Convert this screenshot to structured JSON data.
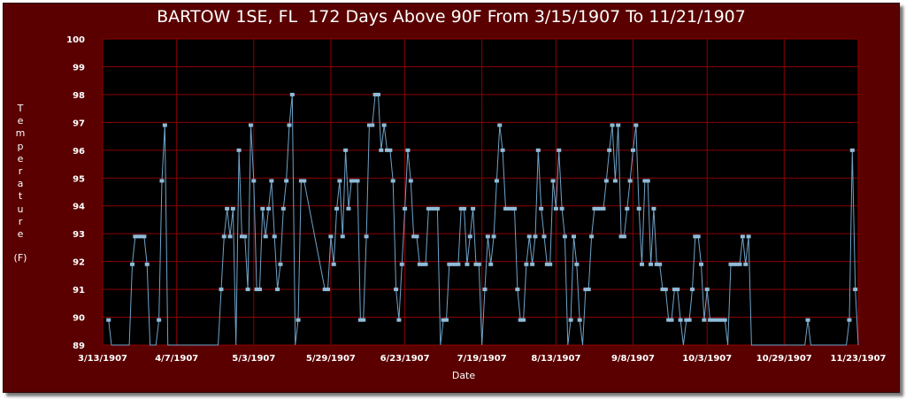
{
  "chart_data": {
    "type": "line",
    "title": "BARTOW 1SE, FL  172 Days Above 90F From 3/15/1907 To 11/21/1907",
    "xlabel": "Date",
    "ylabel_letters": [
      "T",
      "e",
      "m",
      "p",
      "e",
      "r",
      "a",
      "t",
      "u",
      "r",
      "e"
    ],
    "yunit": "(F)",
    "ylim": [
      89,
      100
    ],
    "yticks": [
      89,
      90,
      91,
      92,
      93,
      94,
      95,
      96,
      97,
      98,
      99,
      100
    ],
    "xlim": [
      "1907-03-13",
      "1907-11-23"
    ],
    "xticks": [
      "3/13/1907",
      "4/7/1907",
      "5/3/1907",
      "5/29/1907",
      "6/23/1907",
      "7/19/1907",
      "8/13/1907",
      "9/8/1907",
      "10/3/1907",
      "10/29/1907",
      "11/23/1907"
    ],
    "grid": true,
    "colors": {
      "background": "#5a0000",
      "plot": "#000000",
      "grid": "#8b0000",
      "line": "#6fa3c8",
      "marker": "#8fbcd8",
      "text": "#ffffff"
    },
    "series": [
      {
        "points": [
          [
            "1907-03-15",
            89.9
          ],
          [
            "1907-03-16",
            89.0
          ],
          [
            "1907-03-18",
            89.0
          ],
          [
            "1907-03-22",
            89.0
          ],
          [
            "1907-03-23",
            91.9
          ],
          [
            "1907-03-24",
            92.9
          ],
          [
            "1907-03-25",
            92.9
          ],
          [
            "1907-03-26",
            92.9
          ],
          [
            "1907-03-27",
            92.9
          ],
          [
            "1907-03-28",
            91.9
          ],
          [
            "1907-03-29",
            89.0
          ],
          [
            "1907-03-31",
            89.0
          ],
          [
            "1907-04-01",
            89.9
          ],
          [
            "1907-04-02",
            94.9
          ],
          [
            "1907-04-03",
            96.9
          ],
          [
            "1907-04-04",
            89.0
          ],
          [
            "1907-04-21",
            89.0
          ],
          [
            "1907-04-22",
            91.0
          ],
          [
            "1907-04-23",
            92.9
          ],
          [
            "1907-04-24",
            93.9
          ],
          [
            "1907-04-25",
            92.9
          ],
          [
            "1907-04-26",
            93.9
          ],
          [
            "1907-04-27",
            89.0
          ],
          [
            "1907-04-28",
            96.0
          ],
          [
            "1907-04-29",
            92.9
          ],
          [
            "1907-04-30",
            92.9
          ],
          [
            "1907-05-01",
            91.0
          ],
          [
            "1907-05-02",
            96.9
          ],
          [
            "1907-05-03",
            94.9
          ],
          [
            "1907-05-04",
            91.0
          ],
          [
            "1907-05-05",
            91.0
          ],
          [
            "1907-05-06",
            93.9
          ],
          [
            "1907-05-07",
            92.9
          ],
          [
            "1907-05-08",
            93.9
          ],
          [
            "1907-05-09",
            94.9
          ],
          [
            "1907-05-10",
            92.9
          ],
          [
            "1907-05-11",
            91.0
          ],
          [
            "1907-05-12",
            91.9
          ],
          [
            "1907-05-13",
            93.9
          ],
          [
            "1907-05-14",
            94.9
          ],
          [
            "1907-05-15",
            96.9
          ],
          [
            "1907-05-16",
            98.0
          ],
          [
            "1907-05-17",
            89.0
          ],
          [
            "1907-05-18",
            89.9
          ],
          [
            "1907-05-19",
            94.9
          ],
          [
            "1907-05-20",
            94.9
          ],
          [
            "1907-05-27",
            91.0
          ],
          [
            "1907-05-28",
            91.0
          ],
          [
            "1907-05-29",
            92.9
          ],
          [
            "1907-05-30",
            91.9
          ],
          [
            "1907-05-31",
            93.9
          ],
          [
            "1907-06-01",
            94.9
          ],
          [
            "1907-06-02",
            92.9
          ],
          [
            "1907-06-03",
            96.0
          ],
          [
            "1907-06-04",
            93.9
          ],
          [
            "1907-06-05",
            94.9
          ],
          [
            "1907-06-06",
            94.9
          ],
          [
            "1907-06-07",
            94.9
          ],
          [
            "1907-06-08",
            89.9
          ],
          [
            "1907-06-09",
            89.9
          ],
          [
            "1907-06-10",
            92.9
          ],
          [
            "1907-06-11",
            96.9
          ],
          [
            "1907-06-12",
            96.9
          ],
          [
            "1907-06-13",
            98.0
          ],
          [
            "1907-06-14",
            98.0
          ],
          [
            "1907-06-15",
            96.0
          ],
          [
            "1907-06-16",
            96.9
          ],
          [
            "1907-06-17",
            96.0
          ],
          [
            "1907-06-18",
            96.0
          ],
          [
            "1907-06-19",
            94.9
          ],
          [
            "1907-06-20",
            91.0
          ],
          [
            "1907-06-21",
            89.9
          ],
          [
            "1907-06-22",
            91.9
          ],
          [
            "1907-06-23",
            93.9
          ],
          [
            "1907-06-24",
            96.0
          ],
          [
            "1907-06-25",
            94.9
          ],
          [
            "1907-06-26",
            92.9
          ],
          [
            "1907-06-27",
            92.9
          ],
          [
            "1907-06-28",
            91.9
          ],
          [
            "1907-06-29",
            91.9
          ],
          [
            "1907-06-30",
            91.9
          ],
          [
            "1907-07-01",
            93.9
          ],
          [
            "1907-07-02",
            93.9
          ],
          [
            "1907-07-03",
            93.9
          ],
          [
            "1907-07-04",
            93.9
          ],
          [
            "1907-07-05",
            89.0
          ],
          [
            "1907-07-06",
            89.9
          ],
          [
            "1907-07-07",
            89.9
          ],
          [
            "1907-07-08",
            91.9
          ],
          [
            "1907-07-09",
            91.9
          ],
          [
            "1907-07-10",
            91.9
          ],
          [
            "1907-07-11",
            91.9
          ],
          [
            "1907-07-12",
            93.9
          ],
          [
            "1907-07-13",
            93.9
          ],
          [
            "1907-07-14",
            91.9
          ],
          [
            "1907-07-15",
            92.9
          ],
          [
            "1907-07-16",
            93.9
          ],
          [
            "1907-07-17",
            91.9
          ],
          [
            "1907-07-18",
            91.9
          ],
          [
            "1907-07-19",
            89.0
          ],
          [
            "1907-07-20",
            91.0
          ],
          [
            "1907-07-21",
            92.9
          ],
          [
            "1907-07-22",
            91.9
          ],
          [
            "1907-07-23",
            92.9
          ],
          [
            "1907-07-24",
            94.9
          ],
          [
            "1907-07-25",
            96.9
          ],
          [
            "1907-07-26",
            96.0
          ],
          [
            "1907-07-27",
            93.9
          ],
          [
            "1907-07-28",
            93.9
          ],
          [
            "1907-07-29",
            93.9
          ],
          [
            "1907-07-30",
            93.9
          ],
          [
            "1907-07-31",
            91.0
          ],
          [
            "1907-08-01",
            89.9
          ],
          [
            "1907-08-02",
            89.9
          ],
          [
            "1907-08-03",
            91.9
          ],
          [
            "1907-08-04",
            92.9
          ],
          [
            "1907-08-05",
            91.9
          ],
          [
            "1907-08-06",
            92.9
          ],
          [
            "1907-08-07",
            96.0
          ],
          [
            "1907-08-08",
            93.9
          ],
          [
            "1907-08-09",
            92.9
          ],
          [
            "1907-08-10",
            91.9
          ],
          [
            "1907-08-11",
            91.9
          ],
          [
            "1907-08-12",
            94.9
          ],
          [
            "1907-08-13",
            93.9
          ],
          [
            "1907-08-14",
            96.0
          ],
          [
            "1907-08-15",
            93.9
          ],
          [
            "1907-08-16",
            92.9
          ],
          [
            "1907-08-17",
            89.0
          ],
          [
            "1907-08-18",
            89.9
          ],
          [
            "1907-08-19",
            92.9
          ],
          [
            "1907-08-20",
            91.9
          ],
          [
            "1907-08-21",
            89.9
          ],
          [
            "1907-08-22",
            89.0
          ],
          [
            "1907-08-23",
            91.0
          ],
          [
            "1907-08-24",
            91.0
          ],
          [
            "1907-08-25",
            92.9
          ],
          [
            "1907-08-26",
            93.9
          ],
          [
            "1907-08-27",
            93.9
          ],
          [
            "1907-08-28",
            93.9
          ],
          [
            "1907-08-29",
            93.9
          ],
          [
            "1907-08-30",
            94.9
          ],
          [
            "1907-08-31",
            96.0
          ],
          [
            "1907-09-01",
            96.9
          ],
          [
            "1907-09-02",
            94.9
          ],
          [
            "1907-09-03",
            96.9
          ],
          [
            "1907-09-04",
            92.9
          ],
          [
            "1907-09-05",
            92.9
          ],
          [
            "1907-09-06",
            93.9
          ],
          [
            "1907-09-07",
            94.9
          ],
          [
            "1907-09-08",
            96.0
          ],
          [
            "1907-09-09",
            96.9
          ],
          [
            "1907-09-10",
            93.9
          ],
          [
            "1907-09-11",
            91.9
          ],
          [
            "1907-09-12",
            94.9
          ],
          [
            "1907-09-13",
            94.9
          ],
          [
            "1907-09-14",
            91.9
          ],
          [
            "1907-09-15",
            93.9
          ],
          [
            "1907-09-16",
            91.9
          ],
          [
            "1907-09-17",
            91.9
          ],
          [
            "1907-09-18",
            91.0
          ],
          [
            "1907-09-19",
            91.0
          ],
          [
            "1907-09-20",
            89.9
          ],
          [
            "1907-09-21",
            89.9
          ],
          [
            "1907-09-22",
            91.0
          ],
          [
            "1907-09-23",
            91.0
          ],
          [
            "1907-09-24",
            89.9
          ],
          [
            "1907-09-25",
            89.0
          ],
          [
            "1907-09-26",
            89.9
          ],
          [
            "1907-09-27",
            89.9
          ],
          [
            "1907-09-28",
            91.0
          ],
          [
            "1907-09-29",
            92.9
          ],
          [
            "1907-09-30",
            92.9
          ],
          [
            "1907-10-01",
            91.9
          ],
          [
            "1907-10-02",
            89.9
          ],
          [
            "1907-10-03",
            91.0
          ],
          [
            "1907-10-04",
            89.9
          ],
          [
            "1907-10-05",
            89.9
          ],
          [
            "1907-10-06",
            89.9
          ],
          [
            "1907-10-07",
            89.9
          ],
          [
            "1907-10-08",
            89.9
          ],
          [
            "1907-10-09",
            89.9
          ],
          [
            "1907-10-10",
            89.0
          ],
          [
            "1907-10-11",
            91.9
          ],
          [
            "1907-10-12",
            91.9
          ],
          [
            "1907-10-13",
            91.9
          ],
          [
            "1907-10-14",
            91.9
          ],
          [
            "1907-10-15",
            92.9
          ],
          [
            "1907-10-16",
            91.9
          ],
          [
            "1907-10-17",
            92.9
          ],
          [
            "1907-10-18",
            89.0
          ],
          [
            "1907-11-05",
            89.0
          ],
          [
            "1907-11-06",
            89.9
          ],
          [
            "1907-11-07",
            89.0
          ],
          [
            "1907-11-19",
            89.0
          ],
          [
            "1907-11-20",
            89.9
          ],
          [
            "1907-11-21",
            96.0
          ],
          [
            "1907-11-22",
            91.0
          ],
          [
            "1907-11-23",
            89.0
          ]
        ]
      }
    ]
  }
}
